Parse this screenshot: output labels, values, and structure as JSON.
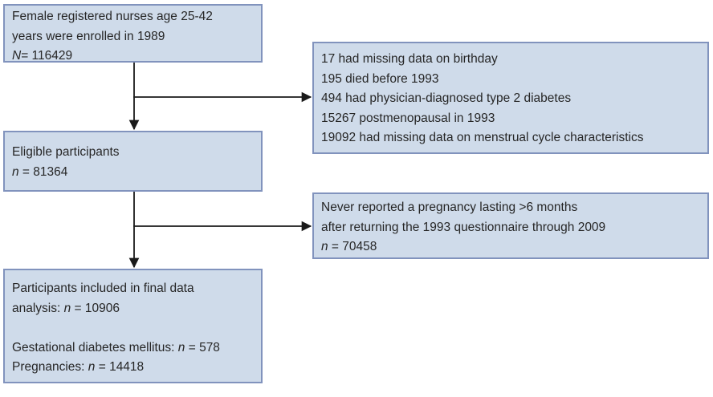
{
  "diagram": {
    "description": "Study participant flow diagram",
    "colors": {
      "box_fill": "#cfdbea",
      "box_border": "#8193bd",
      "text": "#262626",
      "arrow": "#1a1a1a",
      "background": "#ffffff"
    },
    "boxes": [
      {
        "id": "enrolled",
        "lines": [
          [
            {
              "text": "Female registered nurses age 25-42"
            }
          ],
          [
            {
              "text": "years were enrolled in 1989"
            }
          ],
          [
            {
              "text": "N",
              "italic": true
            },
            {
              "text": "= 116429"
            }
          ]
        ]
      },
      {
        "id": "exclusions-1",
        "lines": [
          [
            {
              "text": "17 had missing data on birthday"
            }
          ],
          [
            {
              "text": "195 died before 1993"
            }
          ],
          [
            {
              "text": "494 had physician-diagnosed type 2 diabetes"
            }
          ],
          [
            {
              "text": "15267 postmenopausal in 1993"
            }
          ],
          [
            {
              "text": "19092 had missing data on menstrual cycle characteristics"
            }
          ]
        ]
      },
      {
        "id": "eligible",
        "lines": [
          [
            {
              "text": "Eligible participants"
            }
          ],
          [
            {
              "text": "n",
              "italic": true
            },
            {
              "text": " = 81364"
            }
          ]
        ]
      },
      {
        "id": "exclusions-2",
        "lines": [
          [
            {
              "text": "Never reported a pregnancy lasting >6 months"
            }
          ],
          [
            {
              "text": "after returning the 1993 questionnaire through 2009"
            }
          ],
          [
            {
              "text": "n",
              "italic": true
            },
            {
              "text": " = 70458"
            }
          ]
        ]
      },
      {
        "id": "final",
        "lines": [
          [
            {
              "text": "Participants included in final data"
            }
          ],
          [
            {
              "text": "analysis: "
            },
            {
              "text": "n",
              "italic": true
            },
            {
              "text": " = 10906"
            }
          ],
          [
            {
              "text": ""
            }
          ],
          [
            {
              "text": "Gestational diabetes mellitus: "
            },
            {
              "text": "n",
              "italic": true
            },
            {
              "text": " = 578"
            }
          ],
          [
            {
              "text": "Pregnancies: "
            },
            {
              "text": "n",
              "italic": true
            },
            {
              "text": " = 14418"
            }
          ]
        ]
      }
    ]
  }
}
